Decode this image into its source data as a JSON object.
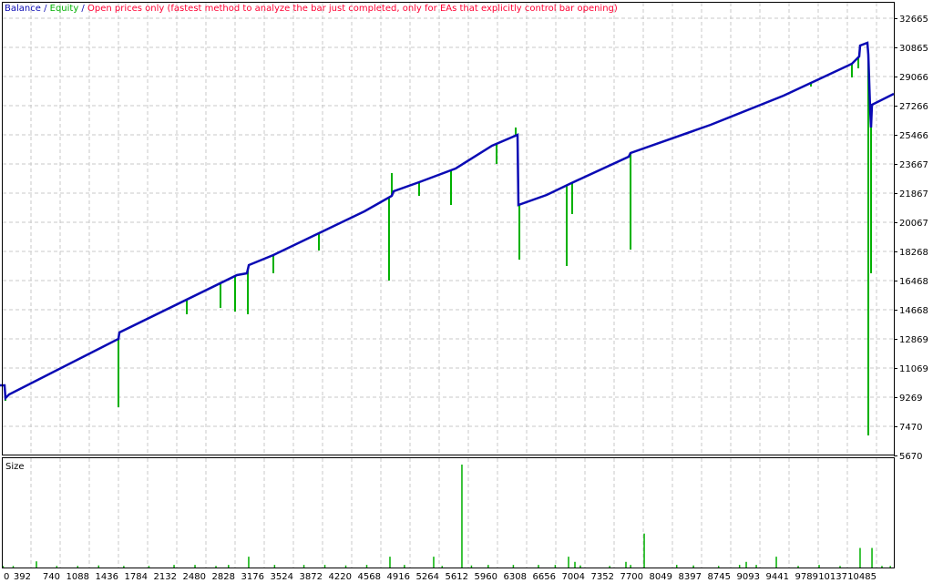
{
  "legend": {
    "balance_label": "Balance",
    "sep1": " / ",
    "equity_label": "Equity",
    "sep2": " / ",
    "model_label": "Open prices only (fastest method to analyze the bar just completed, only for EAs that explicitly control bar opening)"
  },
  "colors": {
    "balance": "#0a0ab4",
    "equity": "#00b000",
    "model_text": "#ff0033",
    "grid": "#c8c8c8",
    "size_bars": "#00b000"
  },
  "chart_data": [
    {
      "type": "line",
      "series": [
        {
          "name": "Balance",
          "points": [
            [
              0,
              10000
            ],
            [
              77,
              10000
            ],
            [
              87,
              9213
            ],
            [
              131,
              9438
            ],
            [
              1436,
              12869
            ],
            [
              1447,
              13263
            ],
            [
              2850,
              16805
            ],
            [
              2970,
              16918
            ],
            [
              2992,
              17424
            ],
            [
              3285,
              18043
            ],
            [
              4373,
              20742
            ],
            [
              4699,
              21698
            ],
            [
              4721,
              21979
            ],
            [
              5025,
              22542
            ],
            [
              5460,
              23385
            ],
            [
              5895,
              24791
            ],
            [
              6200,
              25466
            ],
            [
              6211,
              21136
            ],
            [
              6548,
              21754
            ],
            [
              6820,
              22429
            ],
            [
              7527,
              24116
            ],
            [
              7549,
              24341
            ],
            [
              8506,
              26085
            ],
            [
              9376,
              27885
            ],
            [
              10191,
              29853
            ],
            [
              10278,
              30303
            ],
            [
              10289,
              30978
            ],
            [
              10376,
              31146
            ],
            [
              10387,
              30415
            ],
            [
              10409,
              27041
            ],
            [
              10420,
              25916
            ],
            [
              10431,
              27322
            ],
            [
              10692,
              27997
            ]
          ]
        },
        {
          "name": "Equity",
          "excursions": [
            [
              87,
              9045
            ],
            [
              1436,
              8651
            ],
            [
              2252,
              14387
            ],
            [
              2654,
              14781
            ],
            [
              2828,
              14556
            ],
            [
              2981,
              14387
            ],
            [
              3285,
              16918
            ],
            [
              3829,
              18324
            ],
            [
              4666,
              16468
            ],
            [
              4699,
              23104
            ],
            [
              5025,
              21698
            ],
            [
              5406,
              21136
            ],
            [
              5950,
              23667
            ],
            [
              6178,
              25916
            ],
            [
              6222,
              17761
            ],
            [
              6787,
              17367
            ],
            [
              6852,
              20573
            ],
            [
              7549,
              18380
            ],
            [
              9702,
              28447
            ],
            [
              10191,
              29010
            ],
            [
              10268,
              29572
            ],
            [
              10387,
              6907
            ],
            [
              10420,
              16918
            ]
          ]
        }
      ],
      "y_ticks": [
        "32665",
        "30865",
        "29066",
        "27266",
        "25466",
        "23667",
        "21867",
        "20067",
        "18268",
        "16468",
        "14668",
        "12869",
        "11069",
        "9269",
        "7470",
        "5670"
      ],
      "ylim": [
        5670,
        32665
      ],
      "x_ticks": [
        "0",
        "392",
        "740",
        "1088",
        "1436",
        "1784",
        "2132",
        "2480",
        "2828",
        "3176",
        "3524",
        "3872",
        "4220",
        "4568",
        "4916",
        "5264",
        "5612",
        "5960",
        "6308",
        "6656",
        "7004",
        "7352",
        "7700",
        "8049",
        "8397",
        "8745",
        "9093",
        "9441",
        "9789",
        "10137",
        "10485"
      ],
      "grid": true
    },
    {
      "type": "bar",
      "title": "Size",
      "bars": [
        [
          457,
          6
        ],
        [
          2991,
          10.5
        ],
        [
          4677,
          10.5
        ],
        [
          5199,
          10.5
        ],
        [
          5536,
          100
        ],
        [
          6809,
          10.5
        ],
        [
          6885,
          5.5
        ],
        [
          7494,
          5.5
        ],
        [
          7712,
          33
        ],
        [
          8930,
          5.5
        ],
        [
          9289,
          10.5
        ],
        [
          10289,
          19
        ],
        [
          10431,
          19
        ],
        [
          60,
          1.5
        ],
        [
          180,
          1.5
        ],
        [
          700,
          1.5
        ],
        [
          950,
          1.5
        ],
        [
          1200,
          2
        ],
        [
          1500,
          1.5
        ],
        [
          1800,
          1.5
        ],
        [
          2100,
          2.5
        ],
        [
          2350,
          2.5
        ],
        [
          2600,
          1.5
        ],
        [
          2750,
          2.5
        ],
        [
          3300,
          2.5
        ],
        [
          3650,
          2.5
        ],
        [
          3900,
          2.5
        ],
        [
          4150,
          2
        ],
        [
          4400,
          2.5
        ],
        [
          4850,
          2.5
        ],
        [
          5300,
          1.5
        ],
        [
          5650,
          2
        ],
        [
          5850,
          2.5
        ],
        [
          6150,
          2.5
        ],
        [
          6450,
          2.5
        ],
        [
          6650,
          2.5
        ],
        [
          6950,
          2
        ],
        [
          7300,
          1.5
        ],
        [
          7550,
          2.5
        ],
        [
          8100,
          2.5
        ],
        [
          8300,
          2
        ],
        [
          8600,
          1.5
        ],
        [
          8850,
          2.5
        ],
        [
          9050,
          2.5
        ],
        [
          9550,
          1.5
        ],
        [
          9800,
          2.5
        ],
        [
          10050,
          1.5
        ],
        [
          10550,
          1.5
        ],
        [
          10650,
          1.5
        ]
      ],
      "ylim": [
        0,
        100
      ]
    }
  ]
}
